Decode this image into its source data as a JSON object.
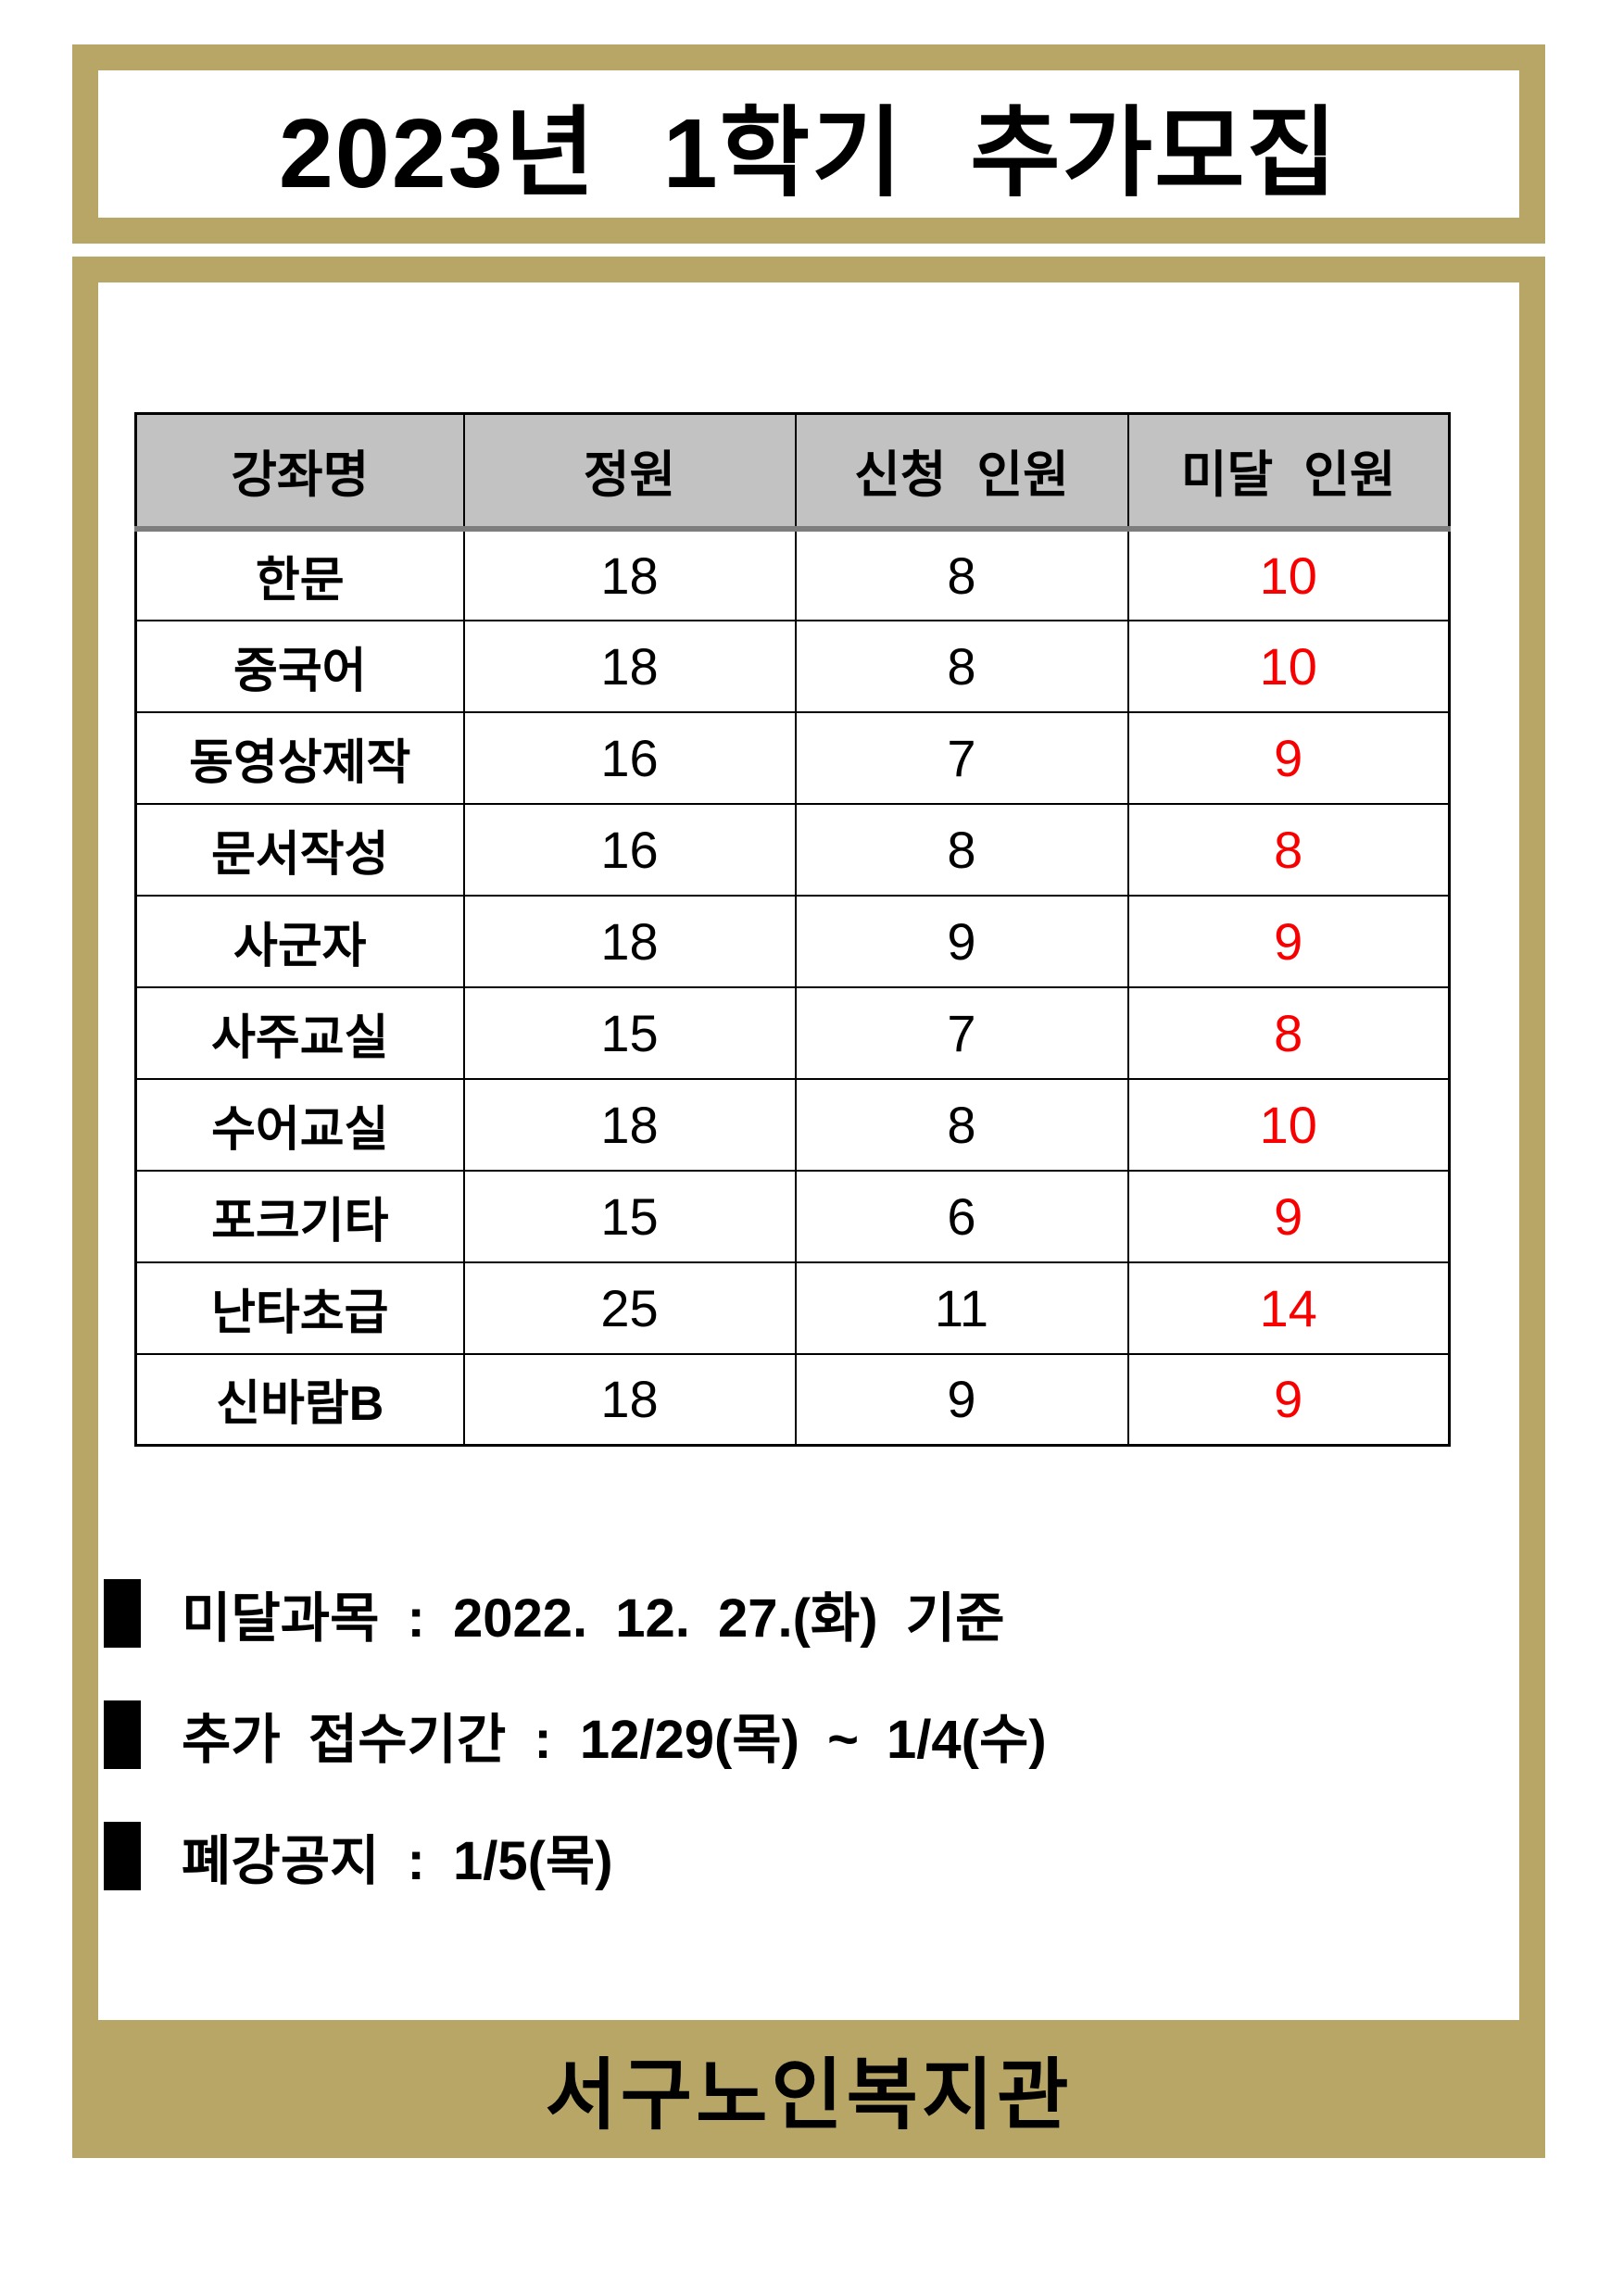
{
  "title": "2023년 1학기 추가모집",
  "colors": {
    "gold_border": "#b7a666",
    "table_header_gray": "#c2c2c2",
    "shortfall_red": "#f80000",
    "text_black": "#000000"
  },
  "table": {
    "headers": [
      "강좌명",
      "정원",
      "신청 인원",
      "미달 인원"
    ],
    "rows": [
      {
        "course": "한문",
        "capacity": "18",
        "applicants": "8",
        "shortfall": "10"
      },
      {
        "course": "중국어",
        "capacity": "18",
        "applicants": "8",
        "shortfall": "10"
      },
      {
        "course": "동영상제작",
        "capacity": "16",
        "applicants": "7",
        "shortfall": "9"
      },
      {
        "course": "문서작성",
        "capacity": "16",
        "applicants": "8",
        "shortfall": "8"
      },
      {
        "course": "사군자",
        "capacity": "18",
        "applicants": "9",
        "shortfall": "9"
      },
      {
        "course": "사주교실",
        "capacity": "15",
        "applicants": "7",
        "shortfall": "8"
      },
      {
        "course": "수어교실",
        "capacity": "18",
        "applicants": "8",
        "shortfall": "10"
      },
      {
        "course": "포크기타",
        "capacity": "15",
        "applicants": "6",
        "shortfall": "9"
      },
      {
        "course": "난타초급",
        "capacity": "25",
        "applicants": "11",
        "shortfall": "14"
      },
      {
        "course": "신바람B",
        "capacity": "18",
        "applicants": "9",
        "shortfall": "9"
      }
    ]
  },
  "notes": [
    {
      "text": "미달과목 : 2022. 12. 27.(화) 기준"
    },
    {
      "text": "추가 접수기간 : 12/29(목) ~ 1/4(수)"
    },
    {
      "text": "폐강공지 : 1/5(목)"
    }
  ],
  "footer": {
    "org_name": "서구노인복지관"
  }
}
